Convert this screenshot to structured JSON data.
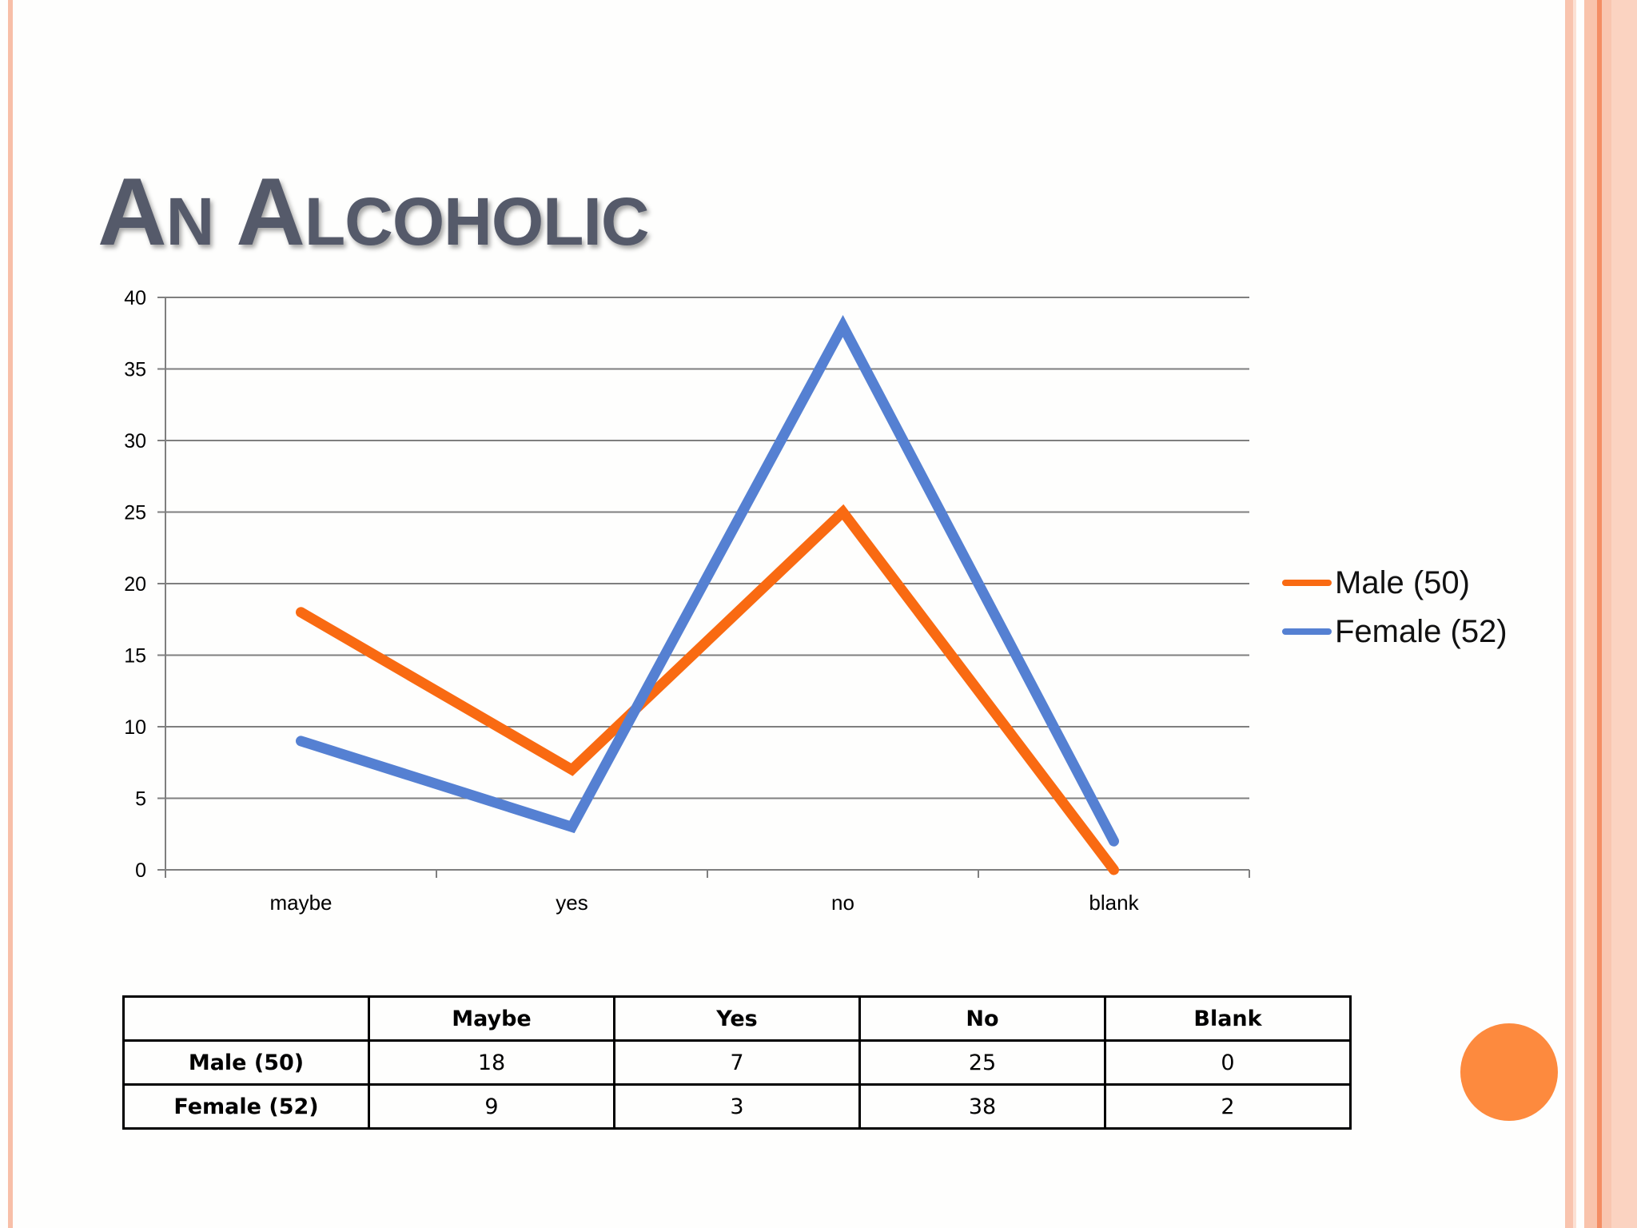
{
  "slide": {
    "title": "An Alcoholic",
    "accent_colors": {
      "frame": "#f8b9a0",
      "frame_dark": "#f4845a",
      "orb": "#fd8a3e"
    }
  },
  "chart_data": {
    "type": "line",
    "categories": [
      "maybe",
      "yes",
      "no",
      "blank"
    ],
    "series": [
      {
        "name": "Male (50)",
        "values": [
          18,
          7,
          25,
          0
        ],
        "color": "#f96a12"
      },
      {
        "name": "Female (52)",
        "values": [
          9,
          3,
          38,
          2
        ],
        "color": "#5580d2"
      }
    ],
    "ylim": [
      0,
      40
    ],
    "yticks": [
      0,
      5,
      10,
      15,
      20,
      25,
      30,
      35,
      40
    ],
    "grid": true,
    "legend_position": "right"
  },
  "table": {
    "headers": [
      "",
      "Maybe",
      "Yes",
      "No",
      "Blank"
    ],
    "rows": [
      {
        "label": "Male (50)",
        "cells": [
          "18",
          "7",
          "25",
          "0"
        ]
      },
      {
        "label": "Female (52)",
        "cells": [
          "9",
          "3",
          "38",
          "2"
        ]
      }
    ]
  }
}
